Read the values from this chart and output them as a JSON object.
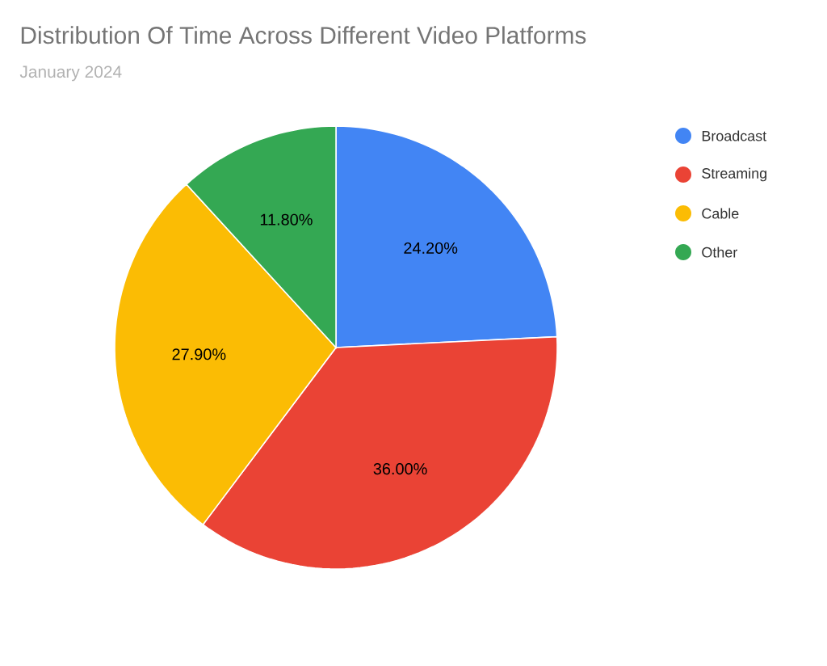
{
  "chart_data": {
    "type": "pie",
    "title": "Distribution Of Time Across Different Video Platforms",
    "subtitle": "January 2024",
    "categories": [
      "Broadcast",
      "Streaming",
      "Cable",
      "Other"
    ],
    "values": [
      24.2,
      36.0,
      27.9,
      11.8
    ],
    "colors": [
      "#4285f4",
      "#ea4335",
      "#fbbc04",
      "#34a853"
    ],
    "value_labels": [
      "24.20%",
      "36.00%",
      "27.90%",
      "11.80%"
    ],
    "legend": "right"
  }
}
